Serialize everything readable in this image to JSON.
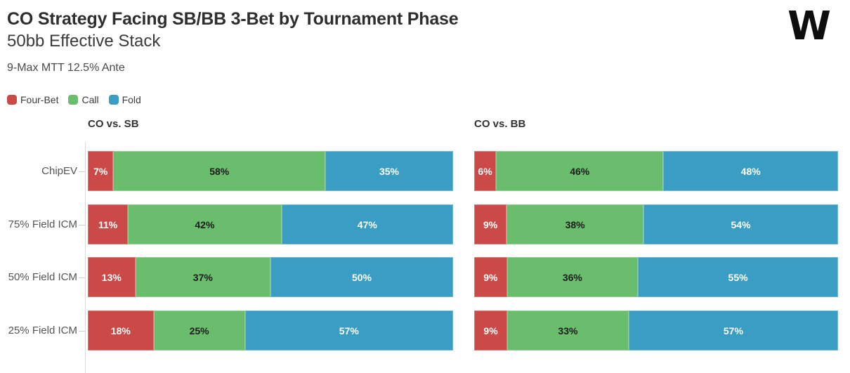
{
  "header": {
    "title": "CO Strategy Facing SB/BB 3-Bet by Tournament Phase",
    "subtitle": "50bb Effective Stack",
    "meta": "9-Max MTT 12.5% Ante",
    "logo_glyph": "W"
  },
  "legend": {
    "items": [
      {
        "label": "Four-Bet",
        "color": "#cb4a47"
      },
      {
        "label": "Call",
        "color": "#69bd6d"
      },
      {
        "label": "Fold",
        "color": "#3a9dc3"
      }
    ]
  },
  "colors": {
    "four_bet": "#cb4a47",
    "call": "#69bd6d",
    "fold": "#3a9dc3",
    "axis": "#dcdcdc",
    "text_dark": "#2e2e2e",
    "text_label": "#555555"
  },
  "chart_data": [
    {
      "type": "bar",
      "orientation": "horizontal",
      "stacked": true,
      "title": "CO vs. SB",
      "categories": [
        "ChipEV",
        "75% Field ICM",
        "50% Field ICM",
        "25% Field ICM"
      ],
      "series": [
        {
          "name": "Four-Bet",
          "color": "#cb4a47",
          "label_color": "#ffffff",
          "values": [
            7,
            11,
            13,
            18
          ]
        },
        {
          "name": "Call",
          "color": "#69bd6d",
          "label_color": "#1c1c1c",
          "values": [
            58,
            42,
            37,
            25
          ]
        },
        {
          "name": "Fold",
          "color": "#3a9dc3",
          "label_color": "#ffffff",
          "values": [
            35,
            47,
            50,
            57
          ]
        }
      ],
      "value_suffix": "%",
      "xlim": [
        0,
        100
      ],
      "grid": false,
      "show_y_axis": true,
      "legend_position": "top-left"
    },
    {
      "type": "bar",
      "orientation": "horizontal",
      "stacked": true,
      "title": "CO vs. BB",
      "categories": [
        "ChipEV",
        "75% Field ICM",
        "50% Field ICM",
        "25% Field ICM"
      ],
      "series": [
        {
          "name": "Four-Bet",
          "color": "#cb4a47",
          "label_color": "#ffffff",
          "values": [
            6,
            9,
            9,
            9
          ]
        },
        {
          "name": "Call",
          "color": "#69bd6d",
          "label_color": "#1c1c1c",
          "values": [
            46,
            38,
            36,
            33
          ]
        },
        {
          "name": "Fold",
          "color": "#3a9dc3",
          "label_color": "#ffffff",
          "values": [
            48,
            54,
            55,
            57
          ]
        }
      ],
      "value_suffix": "%",
      "xlim": [
        0,
        100
      ],
      "grid": false,
      "show_y_axis": false,
      "legend_position": "top-left"
    }
  ]
}
